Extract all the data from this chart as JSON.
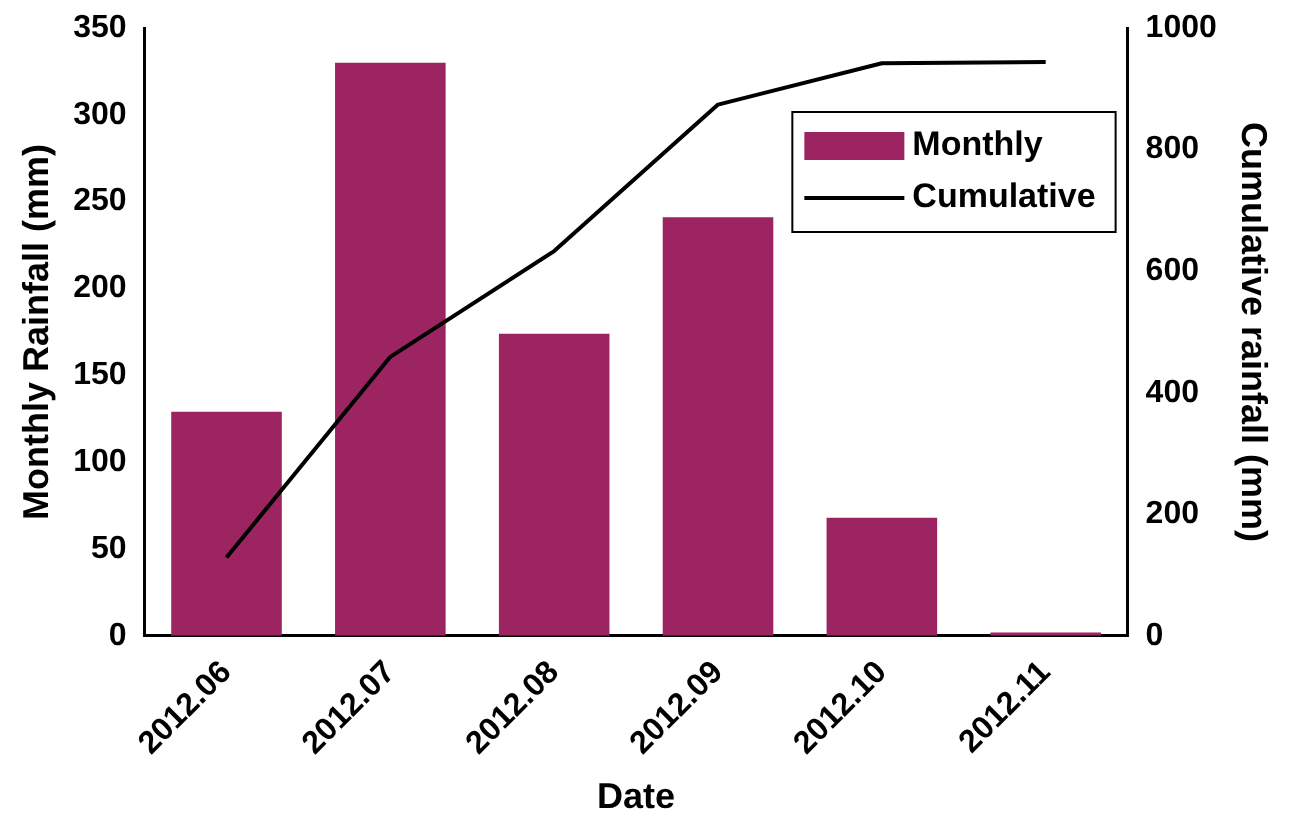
{
  "chart_data": {
    "type": "bar",
    "categories": [
      "2012.06",
      "2012.07",
      "2012.08",
      "2012.09",
      "2012.10",
      "2012.11"
    ],
    "series": [
      {
        "name": "Monthly",
        "color": "#9b2461",
        "values": [
          129,
          330,
          174,
          241,
          68,
          2
        ]
      },
      {
        "name": "Cumulative",
        "type": "line",
        "axis": "y2",
        "color": "#000000",
        "values": [
          129,
          459,
          633,
          874,
          942,
          944
        ]
      }
    ],
    "xlabel": "Date",
    "ylabel": "Monthly Rainfall (mm)",
    "y2label": "Cumulative rainfall (mm)",
    "ylim": [
      0,
      350
    ],
    "yticks": [
      0,
      50,
      100,
      150,
      200,
      250,
      300,
      350
    ],
    "y2lim": [
      0,
      1000
    ],
    "y2ticks": [
      0,
      200,
      400,
      600,
      800,
      1000
    ],
    "legend": "top right",
    "grid": false,
    "marker": "none",
    "line_style": "solid"
  }
}
